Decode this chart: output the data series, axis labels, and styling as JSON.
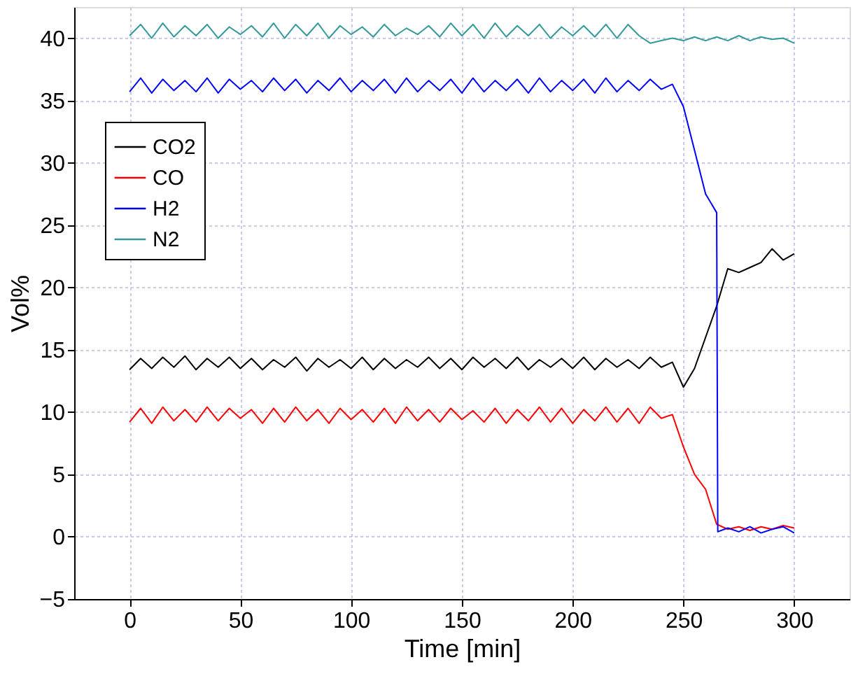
{
  "chart_data": {
    "type": "line",
    "xlabel": "Time [min]",
    "ylabel": "Vol%",
    "xlim": [
      -25,
      325
    ],
    "ylim": [
      -5,
      42.5
    ],
    "xticks": [
      0,
      50,
      100,
      150,
      200,
      250,
      300
    ],
    "yticks": [
      -5,
      0,
      5,
      10,
      15,
      20,
      25,
      30,
      35,
      40
    ],
    "grid": true,
    "legend": "top left",
    "line_style": "solid",
    "marker": "none",
    "series": [
      {
        "name": "CO2",
        "color": "#000000",
        "x": [
          0,
          5,
          10,
          15,
          20,
          25,
          30,
          35,
          40,
          45,
          50,
          55,
          60,
          65,
          70,
          75,
          80,
          85,
          90,
          95,
          100,
          105,
          110,
          115,
          120,
          125,
          130,
          135,
          140,
          145,
          150,
          155,
          160,
          165,
          170,
          175,
          180,
          185,
          190,
          195,
          200,
          205,
          210,
          215,
          220,
          225,
          230,
          235,
          240,
          245,
          250,
          255,
          260,
          265,
          270,
          275,
          280,
          285,
          290,
          295,
          300
        ],
        "values": [
          13.4,
          14.3,
          13.5,
          14.4,
          13.6,
          14.5,
          13.4,
          14.3,
          13.6,
          14.4,
          13.5,
          14.3,
          13.4,
          14.2,
          13.6,
          14.4,
          13.3,
          14.3,
          13.6,
          14.2,
          13.5,
          14.4,
          13.4,
          14.3,
          13.5,
          14.2,
          13.6,
          14.4,
          13.5,
          14.3,
          13.4,
          14.4,
          13.6,
          14.3,
          13.5,
          14.4,
          13.4,
          14.2,
          13.6,
          14.3,
          13.5,
          14.4,
          13.4,
          14.3,
          13.6,
          14.2,
          13.5,
          14.4,
          13.6,
          14.0,
          12.0,
          13.5,
          16.0,
          18.5,
          21.5,
          21.2,
          21.6,
          22.0,
          23.1,
          22.2,
          22.7
        ]
      },
      {
        "name": "CO",
        "color": "#ff0000",
        "x": [
          0,
          5,
          10,
          15,
          20,
          25,
          30,
          35,
          40,
          45,
          50,
          55,
          60,
          65,
          70,
          75,
          80,
          85,
          90,
          95,
          100,
          105,
          110,
          115,
          120,
          125,
          130,
          135,
          140,
          145,
          150,
          155,
          160,
          165,
          170,
          175,
          180,
          185,
          190,
          195,
          200,
          205,
          210,
          215,
          220,
          225,
          230,
          235,
          240,
          245,
          250,
          255,
          260,
          265,
          270,
          275,
          280,
          285,
          290,
          295,
          300
        ],
        "values": [
          9.2,
          10.3,
          9.1,
          10.4,
          9.3,
          10.2,
          9.2,
          10.4,
          9.3,
          10.3,
          9.5,
          10.2,
          9.1,
          10.3,
          9.2,
          10.4,
          9.3,
          10.2,
          9.1,
          10.3,
          9.4,
          10.2,
          9.2,
          10.3,
          9.1,
          10.4,
          9.3,
          10.2,
          9.2,
          10.3,
          9.4,
          10.1,
          9.2,
          10.3,
          9.1,
          10.2,
          9.3,
          10.4,
          9.2,
          10.3,
          9.1,
          10.2,
          9.3,
          10.4,
          9.2,
          10.3,
          9.1,
          10.4,
          9.5,
          9.8,
          7.2,
          5.0,
          3.8,
          1.0,
          0.6,
          0.8,
          0.5,
          0.8,
          0.6,
          0.9,
          0.7
        ]
      },
      {
        "name": "H2",
        "color": "#0000ff",
        "x": [
          0,
          5,
          10,
          15,
          20,
          25,
          30,
          35,
          40,
          45,
          50,
          55,
          60,
          65,
          70,
          75,
          80,
          85,
          90,
          95,
          100,
          105,
          110,
          115,
          120,
          125,
          130,
          135,
          140,
          145,
          150,
          155,
          160,
          165,
          170,
          175,
          180,
          185,
          190,
          195,
          200,
          205,
          210,
          215,
          220,
          225,
          230,
          235,
          240,
          245,
          250,
          255,
          260,
          265,
          265.5,
          270,
          275,
          280,
          285,
          290,
          295,
          300
        ],
        "values": [
          35.7,
          36.8,
          35.6,
          36.7,
          35.8,
          36.6,
          35.7,
          36.8,
          35.6,
          36.7,
          35.9,
          36.6,
          35.7,
          36.8,
          35.8,
          36.7,
          35.6,
          36.6,
          35.8,
          36.8,
          35.7,
          36.6,
          35.8,
          36.7,
          35.6,
          36.8,
          35.7,
          36.6,
          35.8,
          36.7,
          35.6,
          36.8,
          35.7,
          36.6,
          35.8,
          36.7,
          35.6,
          36.8,
          35.7,
          36.6,
          35.8,
          36.7,
          35.6,
          36.8,
          35.7,
          36.6,
          35.8,
          36.7,
          35.9,
          36.3,
          34.5,
          31.0,
          27.5,
          26.0,
          0.4,
          0.7,
          0.4,
          0.8,
          0.3,
          0.6,
          0.8,
          0.3
        ]
      },
      {
        "name": "N2",
        "color": "#339999",
        "x": [
          0,
          5,
          10,
          15,
          20,
          25,
          30,
          35,
          40,
          45,
          50,
          55,
          60,
          65,
          70,
          75,
          80,
          85,
          90,
          95,
          100,
          105,
          110,
          115,
          120,
          125,
          130,
          135,
          140,
          145,
          150,
          155,
          160,
          165,
          170,
          175,
          180,
          185,
          190,
          195,
          200,
          205,
          210,
          215,
          220,
          225,
          230,
          235,
          240,
          245,
          250,
          255,
          260,
          265,
          270,
          275,
          280,
          285,
          290,
          295,
          300
        ],
        "values": [
          40.2,
          41.1,
          40.0,
          41.2,
          40.1,
          41.0,
          40.2,
          41.1,
          40.0,
          40.9,
          40.3,
          41.0,
          40.1,
          41.2,
          40.0,
          41.1,
          40.2,
          41.2,
          40.0,
          41.0,
          40.3,
          40.9,
          40.1,
          41.1,
          40.2,
          40.8,
          40.3,
          41.0,
          40.1,
          41.2,
          40.2,
          41.1,
          40.0,
          41.2,
          40.1,
          41.0,
          40.2,
          41.1,
          40.0,
          40.9,
          40.2,
          41.0,
          40.1,
          41.1,
          40.0,
          41.1,
          40.2,
          39.6,
          39.8,
          40.0,
          39.8,
          40.1,
          39.8,
          40.1,
          39.8,
          40.2,
          39.8,
          40.1,
          39.9,
          40.0,
          39.6
        ]
      }
    ]
  }
}
